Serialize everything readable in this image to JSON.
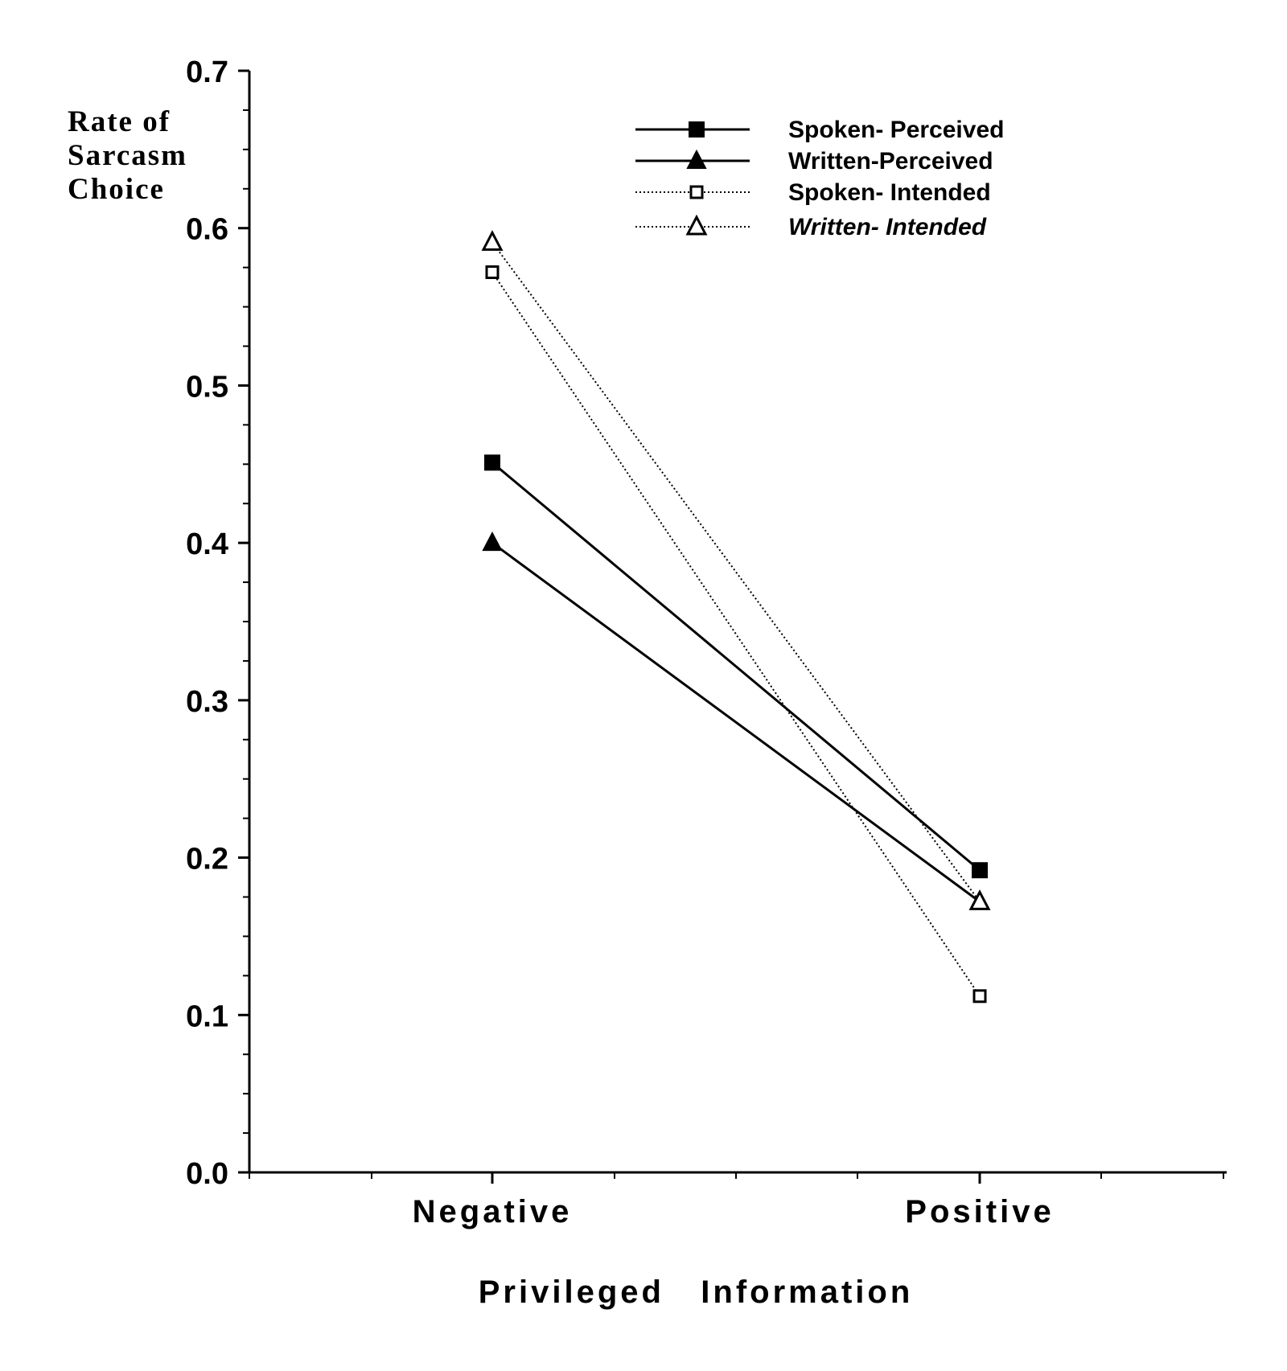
{
  "chart_data": {
    "type": "line",
    "categories": [
      "Negative",
      "Positive"
    ],
    "xlabel": "Privileged   Information",
    "ylabel_lines": [
      "Rate  of",
      "Sarcasm",
      "Choice"
    ],
    "ylim": [
      0.0,
      0.7
    ],
    "yticks": [
      "0.0",
      "0.1",
      "0.2",
      "0.3",
      "0.4",
      "0.5",
      "0.6",
      "0.7"
    ],
    "grid": false,
    "legend_position": "top-right",
    "series": [
      {
        "name": "Spoken- Perceived",
        "values": [
          0.451,
          0.192
        ],
        "line": "solid",
        "marker": "square-filled",
        "italic": false
      },
      {
        "name": "Written-Perceived",
        "values": [
          0.4,
          0.172
        ],
        "line": "solid",
        "marker": "triangle-filled",
        "italic": false
      },
      {
        "name": "Spoken- Intended",
        "values": [
          0.572,
          0.112
        ],
        "line": "dotted",
        "marker": "square-open",
        "italic": false
      },
      {
        "name": "Written- Intended",
        "values": [
          0.591,
          0.172
        ],
        "line": "dotted",
        "marker": "triangle-open",
        "italic": true
      }
    ],
    "color": "#000000"
  }
}
